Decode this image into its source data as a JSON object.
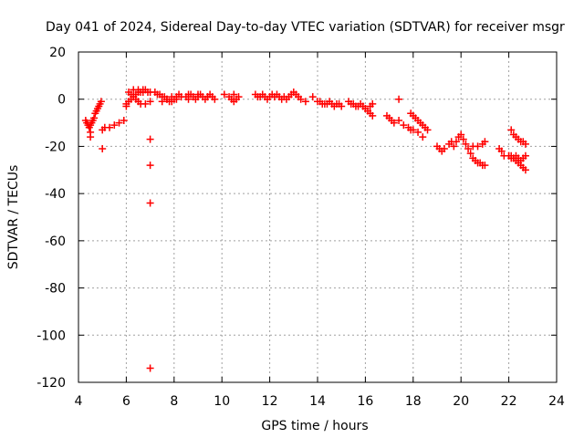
{
  "chart_data": {
    "type": "scatter",
    "title": "Day 041 of 2024, Sidereal Day-to-day VTEC variation (SDTVAR) for receiver msgr",
    "xlabel": "GPS time / hours",
    "ylabel": "SDTVAR / TECUs",
    "xlim": [
      4,
      24
    ],
    "ylim": [
      -120,
      20
    ],
    "xticks": [
      4,
      6,
      8,
      10,
      12,
      14,
      16,
      18,
      20,
      22,
      24
    ],
    "yticks": [
      -120,
      -100,
      -80,
      -60,
      -40,
      -20,
      0,
      20
    ],
    "xtick_labels": [
      "4",
      "6",
      "8",
      "10",
      "12",
      "14",
      "16",
      "18",
      "20",
      "22",
      "24"
    ],
    "ytick_labels": [
      "-120",
      "-100",
      "-80",
      "-60",
      "-40",
      "-20",
      "0",
      "20"
    ],
    "grid": true,
    "marker": "plus",
    "colors": {
      "series": "#ff0000",
      "grid": "#a0a0a0",
      "axis": "#000000"
    },
    "series": [
      {
        "name": "SDTVAR",
        "x": [
          4.3,
          4.35,
          4.4,
          4.45,
          4.5,
          4.55,
          4.6,
          4.65,
          4.7,
          4.75,
          4.8,
          4.85,
          4.9,
          4.95,
          4.5,
          4.5,
          5.0,
          5.1,
          5.3,
          5.5,
          5.7,
          5.9,
          5.0,
          6.0,
          6.1,
          6.2,
          6.3,
          6.4,
          6.5,
          6.6,
          6.7,
          6.8,
          6.9,
          7.0,
          6.2,
          6.3,
          6.4,
          6.5,
          6.6,
          6.8,
          7.0,
          6.0,
          6.1,
          6.3,
          6.5,
          6.7,
          7.2,
          7.3,
          7.4,
          7.5,
          7.6,
          7.7,
          7.8,
          7.9,
          8.0,
          8.1,
          8.2,
          8.3,
          7.5,
          7.7,
          7.9,
          8.1,
          8.5,
          8.6,
          8.7,
          8.8,
          8.9,
          9.0,
          9.1,
          9.2,
          9.3,
          9.4,
          9.5,
          9.6,
          9.7,
          8.6,
          9.0,
          9.4,
          10.1,
          10.3,
          10.4,
          10.5,
          10.6,
          10.7,
          10.5,
          11.4,
          11.5,
          11.6,
          11.7,
          11.8,
          11.9,
          12.0,
          12.1,
          12.2,
          12.3,
          12.4,
          12.5,
          12.6,
          12.7,
          12.8,
          12.9,
          13.0,
          13.1,
          13.2,
          13.3,
          13.5,
          13.8,
          14.0,
          14.1,
          14.2,
          14.3,
          14.4,
          14.5,
          14.6,
          14.7,
          14.8,
          14.9,
          15.0,
          15.3,
          15.4,
          15.5,
          15.6,
          15.7,
          15.8,
          15.9,
          16.0,
          16.1,
          16.2,
          16.3,
          16.2,
          16.3,
          16.9,
          17.0,
          17.1,
          17.2,
          17.4,
          17.6,
          17.8,
          17.9,
          17.4,
          17.9,
          18.0,
          18.1,
          18.2,
          18.3,
          18.4,
          18.5,
          18.6,
          18.0,
          18.2,
          18.4,
          19.0,
          19.1,
          19.2,
          19.3,
          19.5,
          19.6,
          19.7,
          19.8,
          19.9,
          20.0,
          20.1,
          20.2,
          20.3,
          20.4,
          20.5,
          20.6,
          20.7,
          20.8,
          20.9,
          21.0,
          20.5,
          20.7,
          20.9,
          21.0,
          21.6,
          21.7,
          21.8,
          22.0,
          22.1,
          22.2,
          22.3,
          22.4,
          22.5,
          22.6,
          22.7,
          22.1,
          22.2,
          22.3,
          22.4,
          22.5,
          22.6,
          22.7,
          22.0,
          22.1,
          22.2,
          22.3,
          22.4,
          22.5,
          22.6,
          22.7,
          7.0,
          7.0,
          7.0,
          7.0
        ],
        "y": [
          -9,
          -10,
          -11,
          -12,
          -11,
          -10,
          -9,
          -8,
          -6,
          -5,
          -4,
          -3,
          -2,
          -1,
          -14,
          -16,
          -13,
          -12,
          -12,
          -11,
          -10,
          -9,
          -21,
          -2,
          -1,
          0,
          1,
          2,
          3,
          3,
          4,
          4,
          3,
          3,
          2,
          1,
          0,
          -1,
          -2,
          -2,
          -1,
          -3,
          3,
          4,
          4,
          3,
          3,
          2,
          2,
          1,
          1,
          0,
          -1,
          -1,
          0,
          1,
          2,
          1,
          -1,
          0,
          1,
          0,
          1,
          2,
          2,
          1,
          0,
          1,
          2,
          1,
          0,
          1,
          2,
          1,
          0,
          0,
          2,
          1,
          2,
          1,
          0,
          -1,
          0,
          1,
          2,
          2,
          1,
          1,
          2,
          1,
          0,
          1,
          2,
          1,
          2,
          1,
          0,
          1,
          0,
          1,
          2,
          3,
          2,
          1,
          0,
          -1,
          1,
          -1,
          -1,
          -2,
          -2,
          -2,
          -1,
          -2,
          -3,
          -2,
          -2,
          -3,
          -1,
          -2,
          -2,
          -3,
          -3,
          -2,
          -3,
          -4,
          -5,
          -6,
          -7,
          -3,
          -2,
          -7,
          -8,
          -9,
          -10,
          -9,
          -11,
          -12,
          -13,
          0,
          -6,
          -7,
          -8,
          -9,
          -10,
          -11,
          -12,
          -13,
          -13,
          -14,
          -16,
          -20,
          -21,
          -22,
          -21,
          -19,
          -18,
          -20,
          -18,
          -16,
          -15,
          -17,
          -19,
          -21,
          -23,
          -25,
          -26,
          -27,
          -27,
          -28,
          -28,
          -20,
          -20,
          -19,
          -18,
          -21,
          -22,
          -24,
          -24,
          -25,
          -25,
          -26,
          -27,
          -28,
          -29,
          -30,
          -13,
          -15,
          -16,
          -17,
          -18,
          -18,
          -19,
          -24,
          -24,
          -25,
          -24,
          -25,
          -26,
          -25,
          -24,
          -17,
          -28,
          -44,
          -114
        ]
      }
    ]
  }
}
